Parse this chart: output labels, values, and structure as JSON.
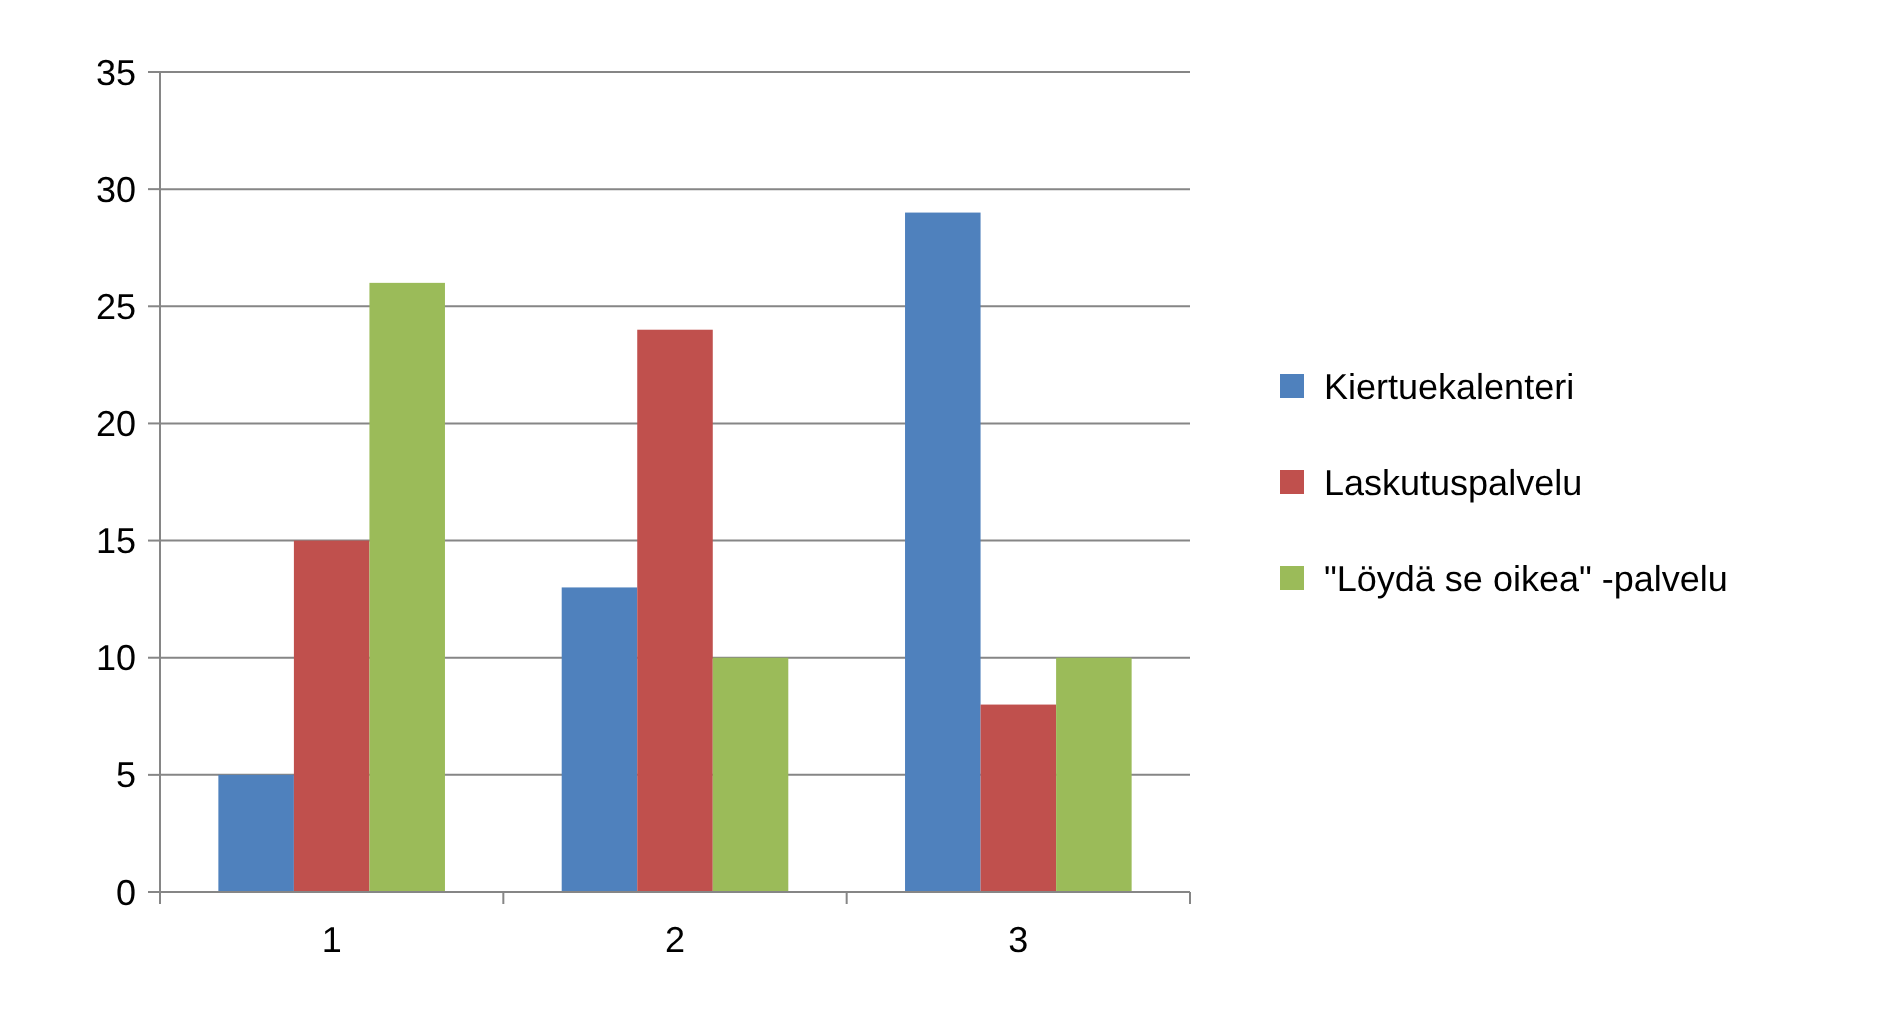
{
  "chart_data": {
    "type": "bar",
    "categories": [
      "1",
      "2",
      "3"
    ],
    "series": [
      {
        "name": "Kiertuekalenteri",
        "color": "#4f81bd",
        "values": [
          5,
          13,
          29
        ]
      },
      {
        "name": "Laskutuspalvelu",
        "color": "#c0504d",
        "values": [
          15,
          24,
          8
        ]
      },
      {
        "name": "\"Löydä se oikea\" -palvelu",
        "color": "#9bbb59",
        "values": [
          26,
          10,
          10
        ]
      }
    ],
    "ylim": [
      0,
      35
    ],
    "yticks": [
      0,
      5,
      10,
      15,
      20,
      25,
      30,
      35
    ],
    "grid": "y",
    "legend": "right"
  }
}
